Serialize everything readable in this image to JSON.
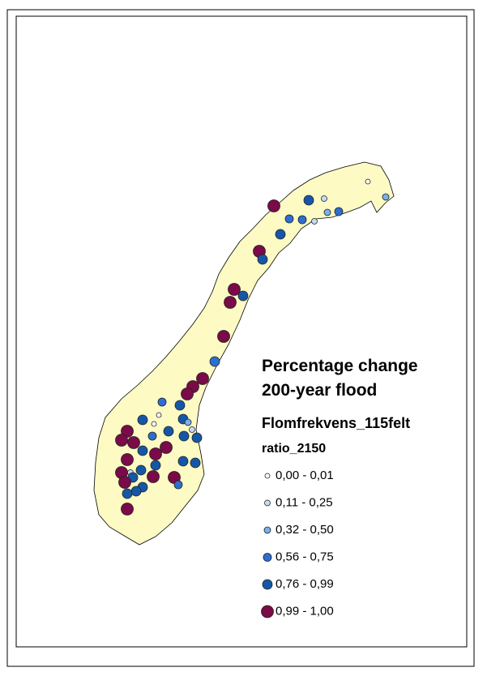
{
  "map": {
    "title": [
      "Percentage change",
      "200-year flood"
    ],
    "layer": "Flomfrekvens_115felt",
    "field": "ratio_2150",
    "legend": [
      {
        "label": "0,00 - 0,01",
        "color": "#ffffff"
      },
      {
        "label": "0,11 - 0,25",
        "color": "#c6dcf5"
      },
      {
        "label": "0,32 - 0,50",
        "color": "#79b0ea"
      },
      {
        "label": "0,56 - 0,75",
        "color": "#2c6fd1"
      },
      {
        "label": "0,76 - 0,99",
        "color": "#1656a6"
      },
      {
        "label": "0,99 - 1,00",
        "color": "#7a0a48"
      }
    ]
  }
}
